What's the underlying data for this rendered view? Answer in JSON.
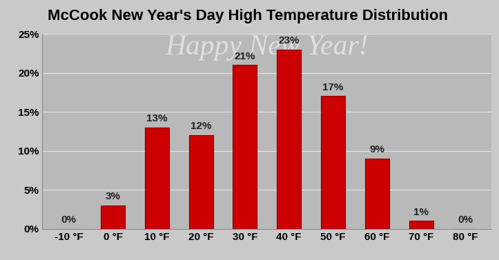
{
  "chart_data": {
    "type": "bar",
    "title": "McCook New Year's Day High Temperature Distribution",
    "categories": [
      "-10 °F",
      "0 °F",
      "10 °F",
      "20 °F",
      "30 °F",
      "40 °F",
      "50 °F",
      "60 °F",
      "70 °F",
      "80 °F"
    ],
    "values": [
      0,
      3,
      13,
      12,
      21,
      23,
      17,
      9,
      1,
      0
    ],
    "value_labels": [
      "0%",
      "3%",
      "13%",
      "12%",
      "21%",
      "23%",
      "17%",
      "9%",
      "1%",
      "0%"
    ],
    "data_labels": true,
    "color": "#cc0000",
    "ylim": [
      0,
      25
    ],
    "yticks": [
      {
        "value": 0,
        "label": "0%"
      },
      {
        "value": 5,
        "label": "5%"
      },
      {
        "value": 10,
        "label": "10%"
      },
      {
        "value": 15,
        "label": "15%"
      },
      {
        "value": 20,
        "label": "20%"
      },
      {
        "value": 25,
        "label": "25%"
      }
    ],
    "grid": true,
    "annotations": [
      "Happy New Year!"
    ]
  }
}
